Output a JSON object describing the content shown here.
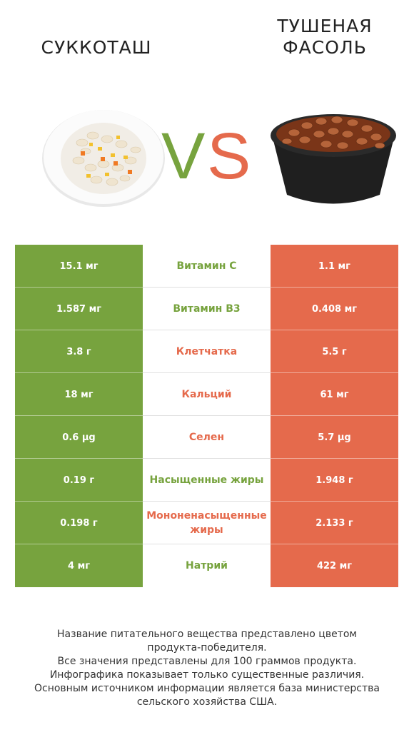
{
  "left_product": {
    "name": "СУККОТАШ"
  },
  "right_product": {
    "name": "ТУШЕНАЯ ФАСОЛЬ"
  },
  "vs_text": {
    "v": "V",
    "s": "S"
  },
  "colors": {
    "left": "#77a33e",
    "right": "#e56a4c"
  },
  "rows": [
    {
      "nutrient": "Витамин C",
      "left": "15.1 мг",
      "right": "1.1 мг",
      "winner": "left"
    },
    {
      "nutrient": "Витамин B3",
      "left": "1.587 мг",
      "right": "0.408 мг",
      "winner": "left"
    },
    {
      "nutrient": "Клетчатка",
      "left": "3.8 г",
      "right": "5.5 г",
      "winner": "right"
    },
    {
      "nutrient": "Кальций",
      "left": "18 мг",
      "right": "61 мг",
      "winner": "right"
    },
    {
      "nutrient": "Селен",
      "left": "0.6 µg",
      "right": "5.7 µg",
      "winner": "right"
    },
    {
      "nutrient": "Насыщенные жиры",
      "left": "0.19 г",
      "right": "1.948 г",
      "winner": "left"
    },
    {
      "nutrient": "Мононенасыщенные жиры",
      "left": "0.198 г",
      "right": "2.133 г",
      "winner": "right"
    },
    {
      "nutrient": "Натрий",
      "left": "4 мг",
      "right": "422 мг",
      "winner": "left"
    }
  ],
  "footnote": {
    "line1": "Название питательного вещества представлено цветом",
    "line2": "продукта-победителя.",
    "line3": "Все значения представлены для 100 граммов продукта.",
    "line4": "Инфографика показывает только существенные различия.",
    "line5": "Основным источником информации является база министерства",
    "line6": "сельского хозяйства США."
  }
}
